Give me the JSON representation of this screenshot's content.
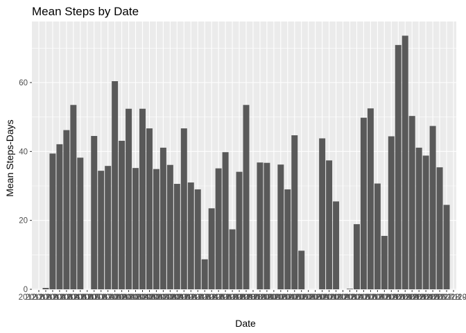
{
  "chart_data": {
    "type": "bar",
    "title": "Mean Steps by Date",
    "xlabel": "Date",
    "ylabel": "Mean Steps-Days",
    "ylim": [
      0,
      75
    ],
    "yticks": [
      0,
      20,
      40,
      60
    ],
    "grid": true,
    "legend": "none",
    "categories": [
      "2012-10-01",
      "2012-10-02",
      "2012-10-03",
      "2012-10-04",
      "2012-10-05",
      "2012-10-06",
      "2012-10-07",
      "2012-10-08",
      "2012-10-09",
      "2012-10-10",
      "2012-10-11",
      "2012-10-12",
      "2012-10-13",
      "2012-10-14",
      "2012-10-15",
      "2012-10-16",
      "2012-10-17",
      "2012-10-18",
      "2012-10-19",
      "2012-10-20",
      "2012-10-21",
      "2012-10-22",
      "2012-10-23",
      "2012-10-24",
      "2012-10-25",
      "2012-10-26",
      "2012-10-27",
      "2012-10-28",
      "2012-10-29",
      "2012-10-30",
      "2012-10-31",
      "2012-11-01",
      "2012-11-02",
      "2012-11-03",
      "2012-11-04",
      "2012-11-05",
      "2012-11-06",
      "2012-11-07",
      "2012-11-08",
      "2012-11-09",
      "2012-11-10",
      "2012-11-11",
      "2012-11-12",
      "2012-11-13",
      "2012-11-14",
      "2012-11-15",
      "2012-11-16",
      "2012-11-17",
      "2012-11-18",
      "2012-11-19",
      "2012-11-20",
      "2012-11-21",
      "2012-11-22",
      "2012-11-23",
      "2012-11-24",
      "2012-11-25",
      "2012-11-26",
      "2012-11-27",
      "2012-11-28",
      "2012-11-29",
      "2012-11-30"
    ],
    "values": [
      null,
      0.4,
      39.4,
      42.1,
      46.2,
      53.5,
      38.2,
      null,
      44.5,
      34.4,
      35.8,
      60.4,
      43.1,
      52.4,
      35.2,
      52.4,
      46.7,
      34.9,
      41.1,
      36.1,
      30.6,
      46.7,
      31.0,
      29.0,
      8.7,
      23.5,
      35.1,
      39.8,
      17.4,
      34.1,
      53.5,
      null,
      36.8,
      36.7,
      null,
      36.2,
      29.0,
      44.7,
      11.2,
      null,
      null,
      43.8,
      37.4,
      25.5,
      null,
      0.1,
      18.9,
      49.8,
      52.5,
      30.7,
      15.5,
      44.4,
      70.9,
      73.6,
      50.3,
      41.1,
      38.8,
      47.4,
      35.4,
      24.5,
      null
    ],
    "bar_color": "#595959",
    "panel_color": "#ebebeb",
    "grid_color": "#ffffff"
  }
}
